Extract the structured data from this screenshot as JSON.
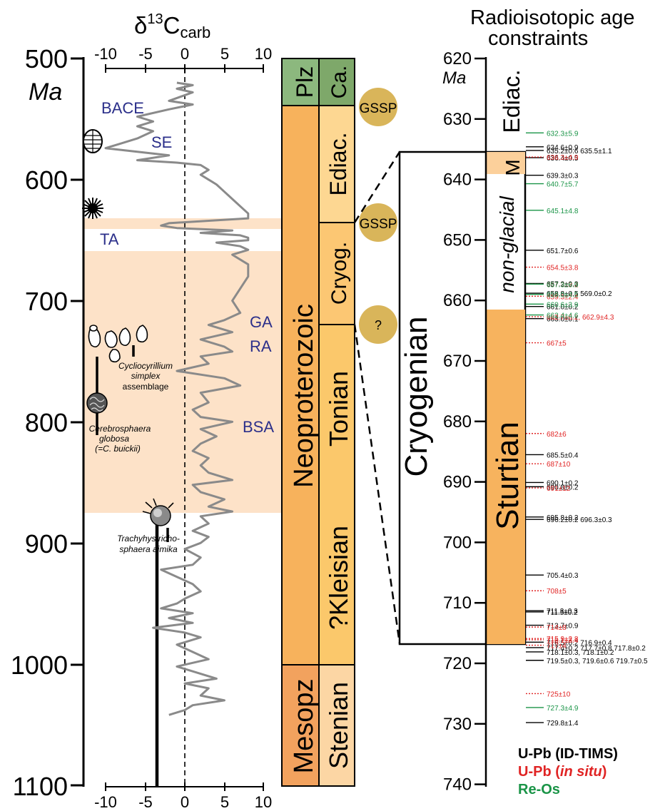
{
  "titles": {
    "d13c_main": "δ",
    "d13c_sup": "13",
    "d13c_c": "C",
    "d13c_sub": "carb",
    "age_unit": "Ma",
    "radio_line1": "Radioisotopic age",
    "radio_line2": "constraints",
    "radio_unit": "Ma"
  },
  "left_axis_ticks": [
    "500",
    "600",
    "700",
    "800",
    "900",
    "1000",
    "1100"
  ],
  "d13c_ticks": [
    "-10",
    "-5",
    "0",
    "5",
    "10"
  ],
  "right_axis_ticks": [
    "620",
    "630",
    "640",
    "650",
    "660",
    "670",
    "680",
    "690",
    "700",
    "710",
    "720",
    "730",
    "740"
  ],
  "events": {
    "bace": "BACE",
    "se": "SE",
    "ta": "TA",
    "ga": "GA",
    "ra": "RA",
    "bsa": "BSA"
  },
  "fossils": {
    "cyclio_1": "Cycliocyrillium",
    "cyclio_2": "simplex",
    "cyclio_3": "assemblage",
    "cereb_1": "Cerebrosphaera",
    "cereb_2": "globosa",
    "cereb_3": "(=C. buickii)",
    "trachy_1": "Trachyhystricho-",
    "trachy_2": "sphaera aimika"
  },
  "eras": {
    "plz": "Plz",
    "neoproterozoic": "Neoproterozoic",
    "mesopz": "Mesopz"
  },
  "periods": {
    "ca": "Ca.",
    "ediac": "Ediac.",
    "cryog": "Cryog.",
    "tonian": "Tonian",
    "kleisian": "?Kleisian",
    "stenian": "Stenian"
  },
  "boundaries": {
    "gssp1": "GSSP",
    "gssp2": "GSSP",
    "q": "?"
  },
  "zoom": {
    "cryogenian": "Cryogenian",
    "ediac": "Ediac.",
    "marinoan_m": "M",
    "non_glacial": "non-glacial",
    "sturtian": "Sturtian"
  },
  "legend": {
    "upb_tims": "U-Pb (ID-TIMS)",
    "upb_insitu_a": "U-Pb (",
    "upb_insitu_b": "in situ",
    "upb_insitu_c": ")",
    "reos": "Re-Os"
  },
  "colors": {
    "tims": "#000000",
    "insitu": "#e02424",
    "reos": "#1a9447",
    "event_blue": "#2b2f8a",
    "glacial": "#fde2c8",
    "plz": "#8cb87e",
    "ca": "#7ea86a",
    "neoproterozoic": "#f7b25c",
    "ediac": "#fdd792",
    "cryog": "#fcc773",
    "tonian": "#fbc86b",
    "mesopz": "#f2a25e",
    "stenian": "#fcd6a4",
    "gssp_circle": "#d9b55a",
    "curve": "#8a8a8a",
    "sturtian": "#f7b35e"
  },
  "chart_data": {
    "type": "line",
    "xlabel": "δ13Ccarb",
    "ylabel": "Ma",
    "xlim": [
      -12,
      10
    ],
    "ylim": [
      500,
      1100
    ],
    "grid": false,
    "series": [
      {
        "points": [
          [
            -1,
            520
          ],
          [
            1,
            522
          ],
          [
            -1,
            525
          ],
          [
            1,
            528
          ],
          [
            -2,
            535
          ],
          [
            1,
            538
          ],
          [
            -2,
            542
          ],
          [
            -6,
            548
          ],
          [
            -4,
            552
          ],
          [
            -6,
            556
          ],
          [
            -4,
            560
          ],
          [
            -6,
            566
          ],
          [
            -8,
            570
          ],
          [
            -10,
            574
          ],
          [
            -6,
            577
          ],
          [
            -2,
            580
          ],
          [
            -6,
            584
          ],
          [
            -1,
            586
          ],
          [
            2,
            588
          ],
          [
            3,
            592
          ],
          [
            2,
            596
          ],
          [
            3,
            600
          ],
          [
            4,
            604
          ],
          [
            5,
            610
          ],
          [
            6,
            616
          ],
          [
            7,
            622
          ],
          [
            8,
            628
          ],
          [
            8,
            632
          ],
          [
            -2,
            636
          ],
          [
            -3,
            638
          ],
          [
            -1,
            640
          ],
          [
            6,
            642
          ],
          [
            2,
            644
          ],
          [
            7,
            646
          ],
          [
            8,
            648
          ],
          [
            8,
            650
          ],
          [
            4,
            652
          ],
          [
            7,
            655
          ],
          [
            8,
            658
          ],
          [
            6,
            662
          ],
          [
            8,
            670
          ],
          [
            8,
            680
          ],
          [
            7,
            690
          ],
          [
            6,
            700
          ],
          [
            7,
            710
          ],
          [
            5,
            716
          ],
          [
            3,
            720
          ],
          [
            6,
            726
          ],
          [
            2,
            732
          ],
          [
            5,
            738
          ],
          [
            6,
            742
          ],
          [
            2,
            746
          ],
          [
            3,
            752
          ],
          [
            -1,
            758
          ],
          [
            5,
            764
          ],
          [
            7,
            770
          ],
          [
            2,
            776
          ],
          [
            3,
            784
          ],
          [
            1,
            790
          ],
          [
            2,
            796
          ],
          [
            6,
            800
          ],
          [
            2,
            806
          ],
          [
            4,
            812
          ],
          [
            2,
            818
          ],
          [
            1,
            824
          ],
          [
            3,
            830
          ],
          [
            2,
            836
          ],
          [
            3,
            842
          ],
          [
            6,
            848
          ],
          [
            1,
            852
          ],
          [
            2,
            858
          ],
          [
            5,
            864
          ],
          [
            3,
            870
          ],
          [
            6,
            874
          ],
          [
            2,
            878
          ],
          [
            3,
            884
          ],
          [
            1,
            890
          ],
          [
            3,
            895
          ],
          [
            2,
            900
          ],
          [
            0,
            905
          ],
          [
            2,
            912
          ],
          [
            1,
            918
          ],
          [
            -3,
            922
          ],
          [
            -1,
            928
          ],
          [
            1,
            934
          ],
          [
            2,
            940
          ],
          [
            0,
            946
          ],
          [
            -1,
            950
          ],
          [
            -3,
            954
          ],
          [
            1,
            958
          ],
          [
            -2,
            962
          ],
          [
            1,
            966
          ],
          [
            -4,
            970
          ],
          [
            0,
            974
          ],
          [
            2,
            978
          ],
          [
            -1,
            984
          ],
          [
            1,
            990
          ],
          [
            3,
            996
          ],
          [
            -1,
            1002
          ],
          [
            1,
            1006
          ],
          [
            4,
            1012
          ],
          [
            0,
            1016
          ],
          [
            3,
            1020
          ],
          [
            2,
            1026
          ],
          [
            5,
            1030
          ],
          [
            1,
            1034
          ],
          [
            0,
            1038
          ],
          [
            -2,
            1042
          ]
        ]
      }
    ],
    "glacial_intervals_Ma": [
      [
        635,
        640
      ],
      [
        660,
        717
      ]
    ],
    "boundaries_Ma": [
      538,
      635,
      720,
      1000
    ],
    "radioisotopic_ages": {
      "ylim": [
        620,
        740
      ],
      "tims": [
        {
          "age": 634.6,
          "label": "634.6±0.9"
        },
        {
          "age": 635.2,
          "label": "635.2±0.6",
          "extra": "635.5±1.1"
        },
        {
          "age": 636.4,
          "label": "636.4±0.5"
        },
        {
          "age": 639.3,
          "label": "639.3±0.3"
        },
        {
          "age": 651.7,
          "label": "651.7±0.6"
        },
        {
          "age": 657.2,
          "label": "657.2±0.3"
        },
        {
          "age": 658.8,
          "label": "658.8±0.5",
          "extra": "569.0±0.2"
        },
        {
          "age": 661.0,
          "label": "661.0±0.2"
        },
        {
          "age": 663.0,
          "label": "663.0±0.1"
        },
        {
          "age": 685.5,
          "label": "685.5±0.4"
        },
        {
          "age": 690.1,
          "label": "690.1±0.2"
        },
        {
          "age": 690.8,
          "label": "690.8±0.2"
        },
        {
          "age": 695.8,
          "label": "695.8±0.2"
        },
        {
          "age": 696.2,
          "label": "696.2±0.2",
          "extra": "696.3±0.3"
        },
        {
          "age": 705.4,
          "label": "705.4±0.3"
        },
        {
          "age": 711.3,
          "label": "711.3±0.3"
        },
        {
          "age": 711.5,
          "label": "711.5±0.2"
        },
        {
          "age": 713.7,
          "label": "713.7±0.9"
        },
        {
          "age": 716.5,
          "label": "716.5±0.2",
          "extra": "716.9±0.4"
        },
        {
          "age": 717.4,
          "label": "717.4±0.2",
          "extra": "717.7±0.8  717.8±0.2"
        },
        {
          "age": 718.1,
          "label": "718.1±0.3,",
          "extra": "718.1±0.2"
        },
        {
          "age": 719.5,
          "label": "719.5±0.3,",
          "extra": "719.6±0.6  719.7±0.5"
        },
        {
          "age": 729.8,
          "label": "729.8±1.4"
        }
      ],
      "insitu": [
        {
          "age": 636.3,
          "label": "636.3±4.9"
        },
        {
          "age": 654.5,
          "label": "654.5±3.8"
        },
        {
          "age": 657.3,
          "label": "657.3±3.2"
        },
        {
          "age": 659.3,
          "label": "659.3±2.4"
        },
        {
          "age": 662.7,
          "label": "662.7±6.2, 662.9±4.3"
        },
        {
          "age": 667,
          "label": "667±5"
        },
        {
          "age": 682,
          "label": "682±6"
        },
        {
          "age": 687,
          "label": "687±10"
        },
        {
          "age": 691,
          "label": "691±12"
        },
        {
          "age": 708,
          "label": "708±5"
        },
        {
          "age": 714,
          "label": "714±8"
        },
        {
          "age": 715.9,
          "label": "715.9±2.8"
        },
        {
          "age": 716.1,
          "label": "716.1±3.4"
        },
        {
          "age": 717,
          "label": "717±4"
        },
        {
          "age": 725,
          "label": "725±10"
        }
      ],
      "reos": [
        {
          "age": 632.3,
          "label": "632.3±5.9"
        },
        {
          "age": 640.7,
          "label": "640.7±5.7"
        },
        {
          "age": 645.1,
          "label": "645.1±4.8"
        },
        {
          "age": 657.3,
          "label": "657.3±6.9"
        },
        {
          "age": 659.0,
          "label": "659.0±4.5"
        },
        {
          "age": 660.6,
          "label": "660.6±3.9"
        },
        {
          "age": 662.4,
          "label": "662.4±4.6"
        },
        {
          "age": 727.3,
          "label": "727.3±4.9"
        }
      ]
    }
  }
}
